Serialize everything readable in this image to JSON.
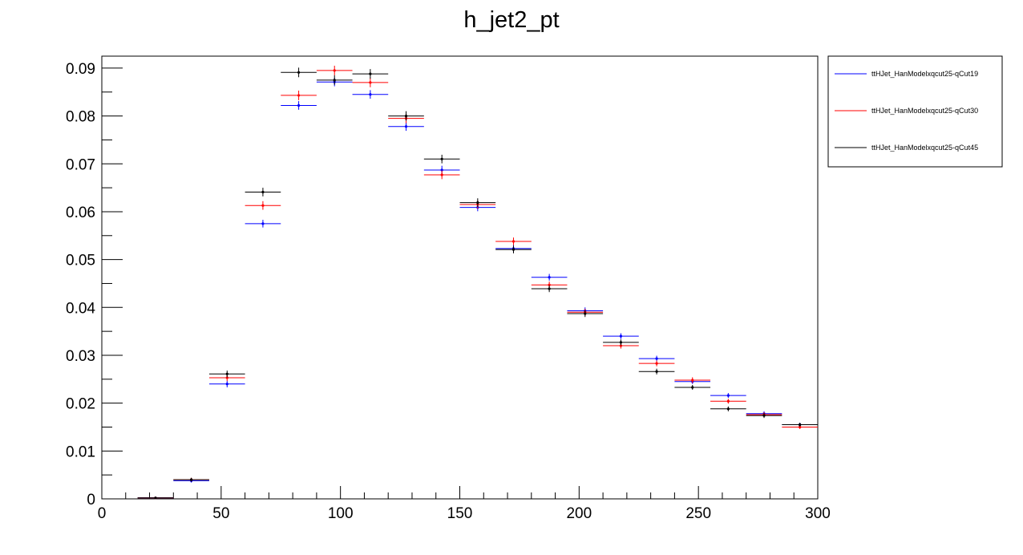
{
  "chart_data": {
    "type": "scatter",
    "title": "h_jet2_pt",
    "xlabel": "",
    "ylabel": "",
    "xlim": [
      0,
      300
    ],
    "ylim": [
      0,
      0.0925
    ],
    "x_ticks": [
      "0",
      "50",
      "100",
      "150",
      "200",
      "250",
      "300"
    ],
    "y_ticks": [
      "0",
      "0.01",
      "0.02",
      "0.03",
      "0.04",
      "0.05",
      "0.06",
      "0.07",
      "0.08",
      "0.09"
    ],
    "grid": false,
    "legend_position": "top-right",
    "bin_edges": [
      15,
      30,
      45,
      60,
      75,
      90,
      105,
      120,
      135,
      150,
      165,
      180,
      195,
      210,
      225,
      240,
      255,
      270,
      285,
      300
    ],
    "series": [
      {
        "name": "ttHJet_HanModelxqcut25-qCut19",
        "color": "#0000ff",
        "values": [
          0.0002,
          0.0038,
          0.024,
          0.0575,
          0.0822,
          0.0871,
          0.0845,
          0.0778,
          0.0687,
          0.0609,
          0.0523,
          0.0463,
          0.0393,
          0.034,
          0.0293,
          0.0245,
          0.0216,
          0.0178,
          0.0155
        ],
        "errors": [
          0.0001,
          0.0004,
          0.0007,
          0.0008,
          0.0009,
          0.0009,
          0.0009,
          0.0009,
          0.0009,
          0.0008,
          0.0008,
          0.0007,
          0.0007,
          0.0006,
          0.0006,
          0.0005,
          0.0005,
          0.0005,
          0.0004
        ]
      },
      {
        "name": "ttHJet_HanModelxqcut25-qCut30",
        "color": "#ff0000",
        "values": [
          0.0002,
          0.004,
          0.0253,
          0.0613,
          0.0843,
          0.0895,
          0.087,
          0.0795,
          0.0677,
          0.0615,
          0.0538,
          0.0447,
          0.039,
          0.032,
          0.0283,
          0.0248,
          0.0204,
          0.0176,
          0.015
        ],
        "errors": [
          0.0001,
          0.0004,
          0.0007,
          0.0009,
          0.001,
          0.001,
          0.001,
          0.001,
          0.0009,
          0.0009,
          0.0008,
          0.0007,
          0.0007,
          0.0006,
          0.0006,
          0.0006,
          0.0005,
          0.0005,
          0.0004
        ]
      },
      {
        "name": "ttHJet_HanModelxqcut25-qCut45",
        "color": "#000000",
        "values": [
          0.0002,
          0.004,
          0.0261,
          0.0641,
          0.0891,
          0.0875,
          0.0888,
          0.08,
          0.071,
          0.0619,
          0.0521,
          0.0439,
          0.0387,
          0.0327,
          0.0266,
          0.0233,
          0.0188,
          0.0174,
          0.0155
        ],
        "errors": [
          0.0001,
          0.0004,
          0.0007,
          0.0009,
          0.001,
          0.001,
          0.001,
          0.001,
          0.0009,
          0.0009,
          0.0008,
          0.0007,
          0.0007,
          0.0006,
          0.0006,
          0.0005,
          0.0005,
          0.0005,
          0.0004
        ]
      }
    ]
  }
}
